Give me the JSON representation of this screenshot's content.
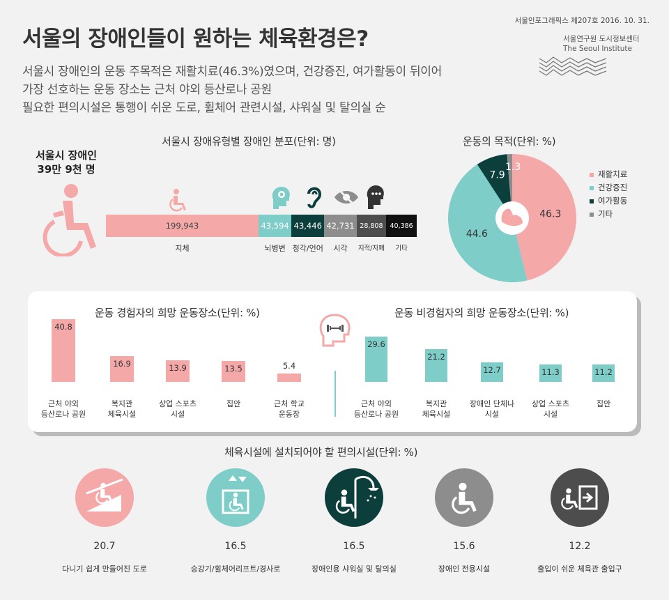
{
  "header": {
    "title": "서울의 장애인들이 원하는 체육환경은?",
    "subtitle_lines": [
      "서울시 장애인의 운동 주목적은 재활치료(46.3%)였으며, 건강증진, 여가활동이 뒤이어",
      "가장 선호하는 운동 장소는 근처 야외 등산로나 공원",
      "필요한 편의시설은 통행이 쉬운 도로, 휠체어 관련시설, 샤워실 및 탈의실 순"
    ],
    "source_line": "서울인포그래픽스 제207호 2016. 10. 31.",
    "org_kr": "서울연구원 도시정보센터",
    "org_en": "The Seoul Institute"
  },
  "colors": {
    "pink": "#f4a9a8",
    "teal": "#7ecdc8",
    "dark_teal": "#0c3e3c",
    "gray": "#8d8d8d",
    "dark_gray": "#4d4d4d",
    "black": "#111111"
  },
  "total": {
    "line1": "서울시 장애인",
    "line2": "39만 9천 명"
  },
  "chart_data": [
    {
      "type": "bar",
      "title": "서울시 장애유형별 장애인 분포(단위: 명)",
      "categories": [
        "지체",
        "뇌병변",
        "청각/언어",
        "시각",
        "지적/자폐",
        "기타"
      ],
      "values": [
        199943,
        43594,
        43446,
        42731,
        28808,
        40386
      ],
      "value_labels": [
        "199,943",
        "43,594",
        "43,446",
        "42,731",
        "28,808",
        "40,386"
      ],
      "colors": [
        "#f4a9a8",
        "#7ecdc8",
        "#0c3e3c",
        "#8d8d8d",
        "#4d4d4d",
        "#111111"
      ]
    },
    {
      "type": "pie",
      "title": "운동의 목적(단위: %)",
      "categories": [
        "재활치료",
        "건강증진",
        "여가활동",
        "기타"
      ],
      "values": [
        46.3,
        44.6,
        7.9,
        1.3
      ],
      "value_labels": [
        "46.3",
        "44.6",
        "7.9",
        "1.3"
      ],
      "colors": [
        "#f4a9a8",
        "#7ecdc8",
        "#0c3e3c",
        "#8d8d8d"
      ],
      "legend": "right"
    },
    {
      "type": "bar",
      "title": "운동 경험자의 희망 운동장소(단위: %)",
      "categories": [
        "근처 야외 등산로나 공원",
        "복지관 체육시설",
        "상업 스포츠 시설",
        "집안",
        "근처 학교 운동장"
      ],
      "category_lines": [
        [
          "근처 야외",
          "등산로나 공원"
        ],
        [
          "복지관",
          "체육시설"
        ],
        [
          "상업 스포츠",
          "시설"
        ],
        [
          "집안"
        ],
        [
          "근처 학교",
          "운동장"
        ]
      ],
      "values": [
        40.8,
        16.9,
        13.9,
        13.5,
        5.4
      ],
      "value_labels": [
        "40.8",
        "16.9",
        "13.9",
        "13.5",
        "5.4"
      ],
      "color": "#f4a9a8"
    },
    {
      "type": "bar",
      "title": "운동 비경험자의 희망 운동장소(단위: %)",
      "categories": [
        "근처 야외 등산로나 공원",
        "복지관 체육시설",
        "장애인 단체나 시설",
        "상업 스포츠 시설",
        "집안"
      ],
      "category_lines": [
        [
          "근처 야외",
          "등산로나 공원"
        ],
        [
          "복지관",
          "체육시설"
        ],
        [
          "장애인 단체나",
          "시설"
        ],
        [
          "상업 스포츠",
          "시설"
        ],
        [
          "집안"
        ]
      ],
      "values": [
        29.6,
        21.2,
        12.7,
        11.3,
        11.2
      ],
      "value_labels": [
        "29.6",
        "21.2",
        "12.7",
        "11.3",
        "11.2"
      ],
      "color": "#7ecdc8"
    },
    {
      "type": "table",
      "title": "체육시설에 설치되어야 할 편의시설(단위: %)",
      "categories": [
        "다니기 쉽게 만들어진 도로",
        "승강기/휠체어리프트/경사로",
        "장애인용 샤워실 및 탈의실",
        "장애인 전용시설",
        "출입이 쉬운 체육관 출입구"
      ],
      "values": [
        20.7,
        16.5,
        16.5,
        15.6,
        12.2
      ],
      "value_labels": [
        "20.7",
        "16.5",
        "16.5",
        "15.6",
        "12.2"
      ],
      "colors": [
        "#f4a9a8",
        "#7ecdc8",
        "#0c3e3c",
        "#8d8d8d",
        "#4d4d4d"
      ],
      "icons": [
        "wheelchair-ramp-icon",
        "elevator-icon",
        "shower-icon",
        "wheelchair-icon",
        "entrance-icon"
      ]
    }
  ]
}
